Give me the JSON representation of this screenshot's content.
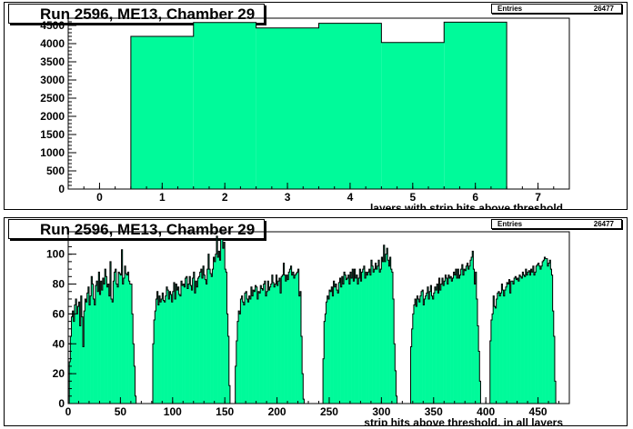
{
  "panels": [
    {
      "title": "Run 2596, ME13, Chamber 29",
      "stats": {
        "label": "Entries",
        "value": "26477"
      }
    },
    {
      "title": "Run 2596, ME13, Chamber 29",
      "stats": {
        "label": "Entries",
        "value": "26477"
      }
    }
  ],
  "colors": {
    "fill": "#00FA9A",
    "line": "#000000"
  },
  "chart_data": [
    {
      "type": "bar",
      "title": "Run 2596, ME13, Chamber 29",
      "xlabel": "layers with strip hits above threshold",
      "ylabel": "",
      "xlim": [
        -0.5,
        7.5
      ],
      "ylim": [
        0,
        4700
      ],
      "xticks": [
        0,
        1,
        2,
        3,
        4,
        5,
        6,
        7
      ],
      "yticks": [
        0,
        500,
        1000,
        1500,
        2000,
        2500,
        3000,
        3500,
        4000,
        4500
      ],
      "bins": [
        0,
        1,
        2,
        3,
        4,
        5,
        6,
        7
      ],
      "values": [
        0,
        4200,
        4580,
        4430,
        4560,
        4030,
        4590,
        0
      ],
      "entries": 26477
    },
    {
      "type": "bar",
      "title": "Run 2596, ME13, Chamber 29",
      "xlabel": "strip hits above threshold, in all layers",
      "ylabel": "",
      "xlim": [
        0,
        480
      ],
      "ylim": [
        0,
        115
      ],
      "xticks": [
        0,
        50,
        100,
        150,
        200,
        250,
        300,
        350,
        400,
        450
      ],
      "yticks": [
        0,
        20,
        40,
        60,
        80,
        100
      ],
      "bin_width": 1,
      "segments": [
        {
          "start": 1,
          "values": [
            28,
            45,
            58,
            62,
            55,
            66,
            70,
            60,
            65,
            68,
            52,
            72,
            58,
            38,
            62,
            70,
            68,
            74,
            78,
            66,
            72,
            85,
            80,
            70,
            66,
            79,
            82,
            75,
            88,
            73,
            82,
            76,
            84,
            80,
            90,
            85,
            78,
            80,
            72,
            95,
            70,
            68,
            82,
            88,
            90,
            80,
            78,
            88,
            87,
            86,
            103,
            80,
            84,
            92,
            87,
            86,
            88,
            82,
            80,
            80,
            60,
            40,
            25,
            5
          ]
        },
        {
          "start": 81,
          "values": [
            40,
            56,
            62,
            70,
            75,
            66,
            72,
            68,
            70,
            74,
            69,
            68,
            72,
            78,
            76,
            70,
            75,
            73,
            68,
            75,
            81,
            70,
            80,
            76,
            78,
            73,
            72,
            82,
            79,
            80,
            78,
            84,
            85,
            77,
            80,
            85,
            79,
            76,
            84,
            88,
            74,
            82,
            78,
            84,
            85,
            88,
            90,
            84,
            92,
            86,
            83,
            80,
            90,
            100,
            90,
            87,
            85,
            90,
            98,
            95,
            100,
            112,
            98,
            102,
            96,
            110,
            110,
            104,
            108,
            90,
            88,
            60,
            45,
            12
          ]
        },
        {
          "start": 160,
          "values": [
            25,
            42,
            55,
            62,
            60,
            70,
            72,
            68,
            66,
            74,
            75,
            70,
            68,
            72,
            70,
            78,
            72,
            76,
            75,
            79,
            78,
            70,
            75,
            74,
            79,
            77,
            76,
            80,
            82,
            72,
            75,
            82,
            76,
            78,
            80,
            86,
            81,
            78,
            80,
            86,
            79,
            82,
            84,
            74,
            85,
            86,
            94,
            86,
            82,
            86,
            83,
            88,
            90,
            92,
            86,
            88,
            84,
            86,
            87,
            88,
            90,
            72,
            75,
            45,
            20,
            3
          ]
        },
        {
          "start": 244,
          "values": [
            30,
            55,
            60,
            68,
            72,
            70,
            76,
            75,
            78,
            72,
            82,
            78,
            80,
            76,
            74,
            81,
            84,
            78,
            85,
            80,
            88,
            86,
            83,
            84,
            86,
            80,
            88,
            84,
            90,
            82,
            90,
            84,
            86,
            80,
            84,
            90,
            82,
            88,
            90,
            92,
            84,
            88,
            86,
            88,
            90,
            86,
            96,
            92,
            88,
            90,
            94,
            90,
            92,
            96,
            88,
            90,
            98,
            95,
            106,
            95,
            100,
            104,
            96,
            92,
            98,
            90,
            88,
            70,
            40,
            22,
            5
          ]
        },
        {
          "start": 328,
          "values": [
            38,
            50,
            60,
            66,
            70,
            65,
            72,
            70,
            68,
            72,
            75,
            76,
            66,
            70,
            72,
            74,
            78,
            70,
            75,
            79,
            72,
            70,
            74,
            78,
            76,
            80,
            74,
            84,
            76,
            80,
            84,
            79,
            82,
            86,
            84,
            80,
            86,
            84,
            85,
            82,
            84,
            88,
            86,
            90,
            84,
            90,
            84,
            86,
            90,
            93,
            86,
            90,
            89,
            92,
            94,
            90,
            92,
            96,
            98,
            102,
            90,
            80,
            88,
            70,
            52,
            35,
            15
          ]
        },
        {
          "start": 404,
          "values": [
            42,
            56,
            60,
            72,
            65,
            64,
            70,
            74,
            75,
            72,
            74,
            80,
            76,
            72,
            76,
            78,
            81,
            80,
            83,
            74,
            82,
            82,
            80,
            84,
            85,
            83,
            84,
            82,
            86,
            85,
            84,
            88,
            86,
            85,
            90,
            86,
            88,
            89,
            86,
            90,
            88,
            92,
            86,
            88,
            92,
            93,
            94,
            92,
            90,
            92,
            95,
            96,
            98,
            97,
            97,
            92,
            94,
            96,
            90,
            86,
            62,
            45,
            15
          ]
        }
      ],
      "entries": 26477
    }
  ]
}
